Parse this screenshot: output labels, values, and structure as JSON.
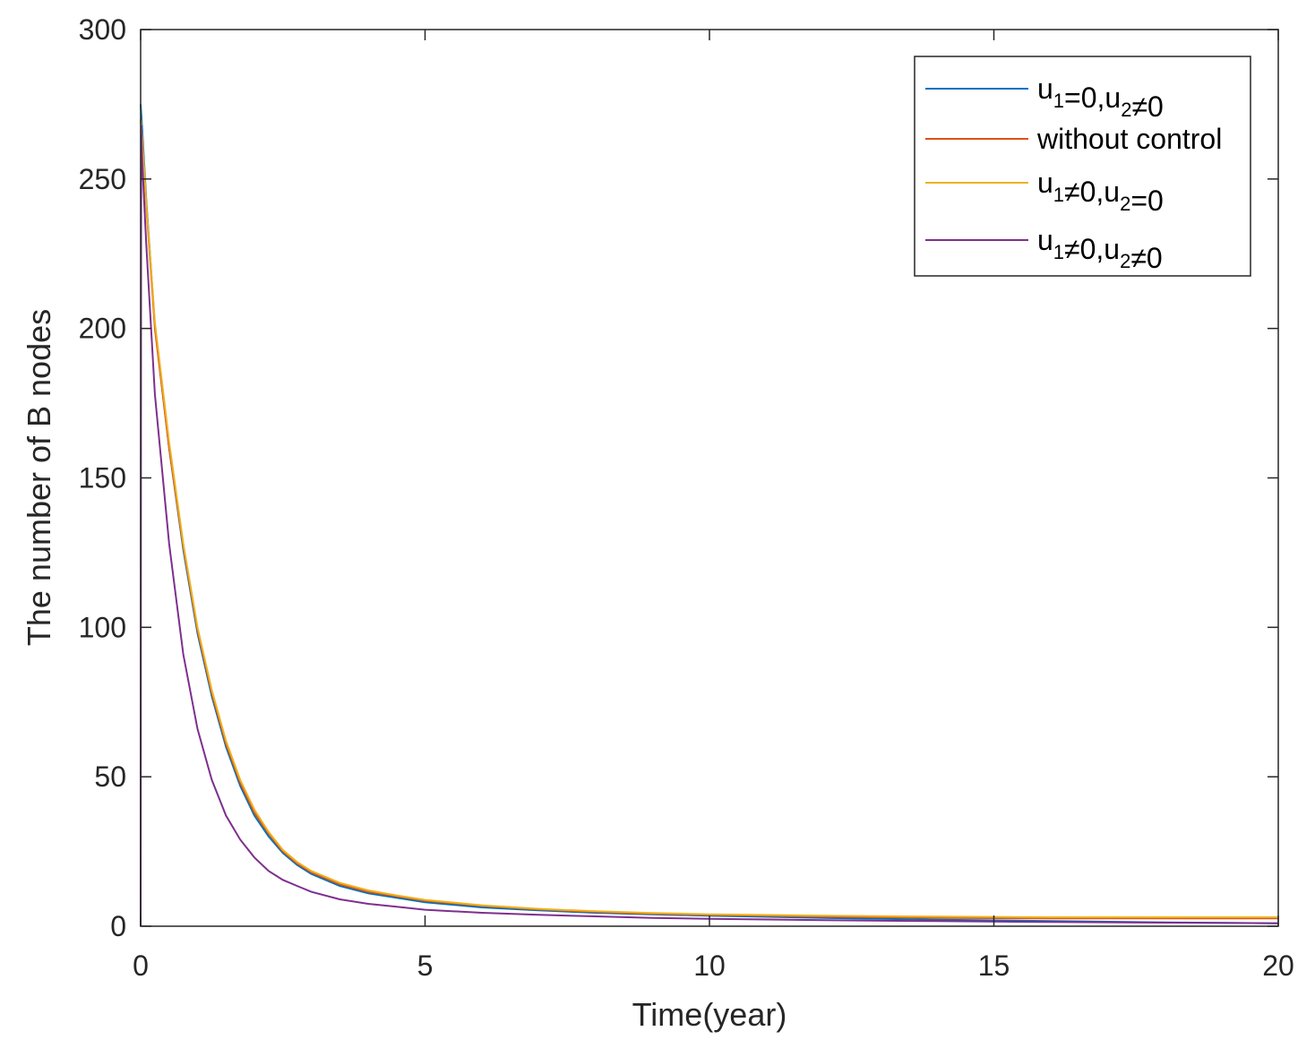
{
  "chart_data": {
    "type": "line",
    "xlabel": "Time(year)",
    "ylabel": "The number of B nodes",
    "xlim": [
      0,
      20
    ],
    "ylim": [
      0,
      300
    ],
    "xticks": [
      0,
      5,
      10,
      15,
      20
    ],
    "yticks": [
      0,
      50,
      100,
      150,
      200,
      250,
      300
    ],
    "grid": false,
    "legend_position": "top-right",
    "series": [
      {
        "name": "u₁=0,u₂≠0",
        "legend_parts": [
          [
            "u",
            ""
          ],
          [
            "1",
            "sub"
          ],
          [
            "=0,u",
            ""
          ],
          [
            "2",
            "sub"
          ],
          [
            "≠0",
            ""
          ]
        ],
        "color": "#0072bd",
        "x": [
          0,
          0.03,
          0.1,
          0.25,
          0.5,
          0.75,
          1,
          1.25,
          1.5,
          1.75,
          2,
          2.25,
          2.5,
          2.75,
          3,
          3.5,
          4,
          4.5,
          5,
          6,
          7,
          8,
          9,
          10,
          12,
          14,
          16,
          18,
          20
        ],
        "y": [
          275,
          266,
          243,
          201,
          160,
          126,
          98,
          77,
          60,
          47,
          37,
          30,
          24.5,
          20.5,
          17.5,
          13.5,
          11,
          9.5,
          8,
          6.3,
          5.3,
          4.5,
          4,
          3.5,
          2.8,
          2.2,
          1.7,
          1.3,
          1
        ]
      },
      {
        "name": "without control",
        "legend_parts": [
          [
            "without control",
            ""
          ]
        ],
        "color": "#d95319",
        "x": [
          0,
          0.03,
          0.1,
          0.25,
          0.5,
          0.75,
          1,
          1.25,
          1.5,
          1.75,
          2,
          2.25,
          2.5,
          2.75,
          3,
          3.5,
          4,
          4.5,
          5,
          6,
          7,
          8,
          9,
          10,
          12,
          14,
          16,
          18,
          20
        ],
        "y": [
          270,
          262,
          241,
          200,
          160,
          127,
          99,
          78,
          61,
          48,
          38,
          31,
          25,
          21,
          18,
          14,
          11.5,
          10,
          8.5,
          6.8,
          5.6,
          4.8,
          4.2,
          3.8,
          3.2,
          2.8,
          2.6,
          2.6,
          2.6
        ]
      },
      {
        "name": "u₁≠0,u₂=0",
        "legend_parts": [
          [
            "u",
            ""
          ],
          [
            "1",
            "sub"
          ],
          [
            "≠0,u",
            ""
          ],
          [
            "2",
            "sub"
          ],
          [
            "=0",
            ""
          ]
        ],
        "color": "#edb120",
        "x": [
          0,
          0.03,
          0.1,
          0.25,
          0.5,
          0.75,
          1,
          1.25,
          1.5,
          1.75,
          2,
          2.25,
          2.5,
          2.75,
          3,
          3.5,
          4,
          4.5,
          5,
          6,
          7,
          8,
          9,
          10,
          12,
          14,
          16,
          18,
          20
        ],
        "y": [
          270,
          263,
          242,
          202,
          162,
          128,
          100,
          79,
          62,
          49,
          39,
          31.5,
          25.5,
          21.5,
          18.5,
          14.5,
          12,
          10.3,
          8.8,
          7,
          5.8,
          5,
          4.4,
          4,
          3.5,
          3.2,
          3,
          3,
          3
        ]
      },
      {
        "name": "u₁≠0,u₂≠0",
        "legend_parts": [
          [
            "u",
            ""
          ],
          [
            "1",
            "sub"
          ],
          [
            "≠0,u",
            ""
          ],
          [
            "2",
            "sub"
          ],
          [
            "≠0",
            ""
          ]
        ],
        "color": "#7e2f8e",
        "x": [
          0,
          0.01,
          0.03,
          0.1,
          0.25,
          0.5,
          0.75,
          1,
          1.25,
          1.5,
          1.75,
          2,
          2.25,
          2.5,
          2.75,
          3,
          3.5,
          4,
          4.5,
          5,
          6,
          7,
          8,
          9,
          10,
          12,
          14,
          16,
          18,
          20
        ],
        "y": [
          0,
          268,
          255,
          228,
          178,
          128,
          91,
          66,
          49,
          37,
          29,
          23,
          18.5,
          15.5,
          13.5,
          11.5,
          9,
          7.5,
          6.5,
          5.5,
          4.5,
          3.8,
          3.3,
          2.8,
          2.5,
          2,
          1.7,
          1.4,
          1.2,
          1
        ]
      }
    ]
  }
}
